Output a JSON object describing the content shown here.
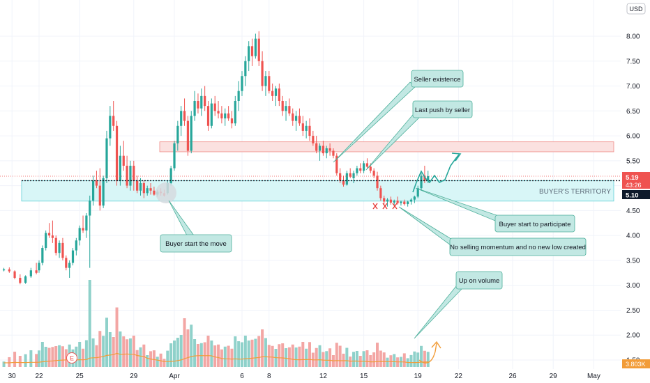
{
  "chart_data": {
    "type": "candlestick",
    "currency": "USD",
    "y_ticks": [
      "8.00",
      "7.50",
      "7.00",
      "6.50",
      "6.00",
      "5.50",
      "5.00",
      "4.50",
      "4.00",
      "3.50",
      "3.00",
      "2.50",
      "2.00",
      "1.50"
    ],
    "ylim": [
      1.27,
      8.45
    ],
    "x_ticks": [
      {
        "label": "30",
        "day": -2
      },
      {
        "label": "22",
        "day": 0
      },
      {
        "label": "25",
        "day": 3
      },
      {
        "label": "29",
        "day": 7
      },
      {
        "label": "Apr",
        "day": 10
      },
      {
        "label": "6",
        "day": 15
      },
      {
        "label": "8",
        "day": 17
      },
      {
        "label": "12",
        "day": 21
      },
      {
        "label": "15",
        "day": 24
      },
      {
        "label": "19",
        "day": 28
      },
      {
        "label": "22",
        "day": 31
      },
      {
        "label": "26",
        "day": 35
      },
      {
        "label": "29",
        "day": 38
      },
      {
        "label": "May",
        "day": 41
      }
    ],
    "candle_series": [
      [
        -2.6,
        3.3,
        3.35,
        3.28,
        3.32
      ],
      [
        -2.2,
        3.32,
        3.36,
        3.25,
        3.28
      ],
      [
        -1.8,
        3.28,
        3.3,
        3.12,
        3.15
      ],
      [
        -1.4,
        3.15,
        3.22,
        3.02,
        3.05
      ],
      [
        -1.0,
        3.05,
        3.2,
        3.03,
        3.18
      ],
      [
        -0.6,
        3.18,
        3.35,
        3.15,
        3.3
      ],
      [
        -0.2,
        3.3,
        3.45,
        3.22,
        3.25
      ],
      [
        0.0,
        3.3,
        3.5,
        3.25,
        3.45
      ],
      [
        0.25,
        3.45,
        3.8,
        3.4,
        3.75
      ],
      [
        0.5,
        3.75,
        4.1,
        3.7,
        4.05
      ],
      [
        0.75,
        4.05,
        4.25,
        3.95,
        4.0
      ],
      [
        1.0,
        4.0,
        4.3,
        3.85,
        3.95
      ],
      [
        1.25,
        3.95,
        4.0,
        3.6,
        3.65
      ],
      [
        1.5,
        3.65,
        3.9,
        3.55,
        3.85
      ],
      [
        1.75,
        3.85,
        3.95,
        3.5,
        3.55
      ],
      [
        2.0,
        3.55,
        3.6,
        3.3,
        3.35
      ],
      [
        2.25,
        3.35,
        3.5,
        3.15,
        3.45
      ],
      [
        2.5,
        3.45,
        3.75,
        3.4,
        3.7
      ],
      [
        2.75,
        3.7,
        3.95,
        3.6,
        3.9
      ],
      [
        3.0,
        3.9,
        4.2,
        3.8,
        4.15
      ],
      [
        3.25,
        4.15,
        4.4,
        4.05,
        4.1
      ],
      [
        3.5,
        4.1,
        4.45,
        3.95,
        4.4
      ],
      [
        3.75,
        4.4,
        4.8,
        3.35,
        4.7
      ],
      [
        4.0,
        4.7,
        5.2,
        4.6,
        5.1
      ],
      [
        4.25,
        5.1,
        5.3,
        4.95,
        5.0
      ],
      [
        4.5,
        5.0,
        5.35,
        4.5,
        4.6
      ],
      [
        4.75,
        4.6,
        5.2,
        4.55,
        5.15
      ],
      [
        5.0,
        5.15,
        6.1,
        5.05,
        5.95
      ],
      [
        5.25,
        5.95,
        6.6,
        5.8,
        6.4
      ],
      [
        5.5,
        6.4,
        6.7,
        6.1,
        6.2
      ],
      [
        5.75,
        6.2,
        6.3,
        5.0,
        5.1
      ],
      [
        6.0,
        5.1,
        5.8,
        5.0,
        5.6
      ],
      [
        6.25,
        5.6,
        5.9,
        5.3,
        5.4
      ],
      [
        6.5,
        5.4,
        5.6,
        4.95,
        5.0
      ],
      [
        6.75,
        5.0,
        5.5,
        4.9,
        5.4
      ],
      [
        7.0,
        5.4,
        5.5,
        4.9,
        5.1
      ],
      [
        7.25,
        5.1,
        5.2,
        4.85,
        4.9
      ],
      [
        7.5,
        4.9,
        5.15,
        4.8,
        5.05
      ],
      [
        7.75,
        5.05,
        5.1,
        4.75,
        4.85
      ],
      [
        8.0,
        4.85,
        5.0,
        4.8,
        4.95
      ],
      [
        8.25,
        4.95,
        5.05,
        4.82,
        4.9
      ],
      [
        8.5,
        4.9,
        4.98,
        4.8,
        4.82
      ],
      [
        8.75,
        4.82,
        4.92,
        4.78,
        4.88
      ],
      [
        9.0,
        4.88,
        4.95,
        4.8,
        4.85
      ],
      [
        9.25,
        4.85,
        4.92,
        4.78,
        4.8
      ],
      [
        9.5,
        4.85,
        5.1,
        4.82,
        5.05
      ],
      [
        9.75,
        5.05,
        5.4,
        5.0,
        5.35
      ],
      [
        10.0,
        5.35,
        5.9,
        5.3,
        5.85
      ],
      [
        10.25,
        5.85,
        6.3,
        5.7,
        6.2
      ],
      [
        10.5,
        6.2,
        6.6,
        6.0,
        6.5
      ],
      [
        10.75,
        6.5,
        6.75,
        6.2,
        6.3
      ],
      [
        11.0,
        6.3,
        6.4,
        5.6,
        5.7
      ],
      [
        11.25,
        5.7,
        6.5,
        5.65,
        6.4
      ],
      [
        11.5,
        6.4,
        6.9,
        6.3,
        6.7
      ],
      [
        11.75,
        6.7,
        6.85,
        6.45,
        6.55
      ],
      [
        12.0,
        6.55,
        6.95,
        6.4,
        6.8
      ],
      [
        12.25,
        6.8,
        7.0,
        6.5,
        6.6
      ],
      [
        12.5,
        6.6,
        6.7,
        6.1,
        6.2
      ],
      [
        12.75,
        6.2,
        6.75,
        6.15,
        6.65
      ],
      [
        13.0,
        6.65,
        6.8,
        6.4,
        6.5
      ],
      [
        13.25,
        6.5,
        6.7,
        6.35,
        6.45
      ],
      [
        13.5,
        6.45,
        6.6,
        6.25,
        6.35
      ],
      [
        13.75,
        6.35,
        6.55,
        6.2,
        6.45
      ],
      [
        14.0,
        6.45,
        6.6,
        6.3,
        6.35
      ],
      [
        14.25,
        6.35,
        6.5,
        6.15,
        6.25
      ],
      [
        14.5,
        6.25,
        6.8,
        6.2,
        6.7
      ],
      [
        14.75,
        6.7,
        7.1,
        6.5,
        6.9
      ],
      [
        15.0,
        6.9,
        7.3,
        6.8,
        7.2
      ],
      [
        15.25,
        7.2,
        7.6,
        7.0,
        7.5
      ],
      [
        15.5,
        7.5,
        7.9,
        7.3,
        7.8
      ],
      [
        15.75,
        7.8,
        7.95,
        7.4,
        7.6
      ],
      [
        16.0,
        7.6,
        8.05,
        7.55,
        7.95
      ],
      [
        16.25,
        7.95,
        8.1,
        7.4,
        7.5
      ],
      [
        16.5,
        7.5,
        7.7,
        6.9,
        7.0
      ],
      [
        16.75,
        7.0,
        7.3,
        6.8,
        7.2
      ],
      [
        17.0,
        7.2,
        7.3,
        6.85,
        6.9
      ],
      [
        17.25,
        6.9,
        7.05,
        6.7,
        6.8
      ],
      [
        17.5,
        6.8,
        7.0,
        6.6,
        6.95
      ],
      [
        17.75,
        6.95,
        7.05,
        6.6,
        6.7
      ],
      [
        18.0,
        6.7,
        6.8,
        6.4,
        6.5
      ],
      [
        18.25,
        6.5,
        6.7,
        6.3,
        6.6
      ],
      [
        18.5,
        6.6,
        6.75,
        6.4,
        6.45
      ],
      [
        18.75,
        6.45,
        6.55,
        6.2,
        6.3
      ],
      [
        19.0,
        6.3,
        6.5,
        6.1,
        6.4
      ],
      [
        19.25,
        6.4,
        6.55,
        6.2,
        6.25
      ],
      [
        19.5,
        6.25,
        6.4,
        6.0,
        6.1
      ],
      [
        19.75,
        6.1,
        6.3,
        5.95,
        6.2
      ],
      [
        20.0,
        6.2,
        6.35,
        5.9,
        6.0
      ],
      [
        20.25,
        6.0,
        6.1,
        5.8,
        5.85
      ],
      [
        20.5,
        5.85,
        6.0,
        5.65,
        5.7
      ],
      [
        20.75,
        5.7,
        5.85,
        5.5,
        5.8
      ],
      [
        21.0,
        5.8,
        5.9,
        5.6,
        5.65
      ],
      [
        21.25,
        5.65,
        5.8,
        5.55,
        5.75
      ],
      [
        21.5,
        5.75,
        5.85,
        5.6,
        5.7
      ],
      [
        21.75,
        5.7,
        5.75,
        5.55,
        5.6
      ],
      [
        22.0,
        5.6,
        5.65,
        5.2,
        5.25
      ],
      [
        22.25,
        5.25,
        5.35,
        5.05,
        5.1
      ],
      [
        22.5,
        5.1,
        5.2,
        4.98,
        5.02
      ],
      [
        22.75,
        5.02,
        5.3,
        5.0,
        5.25
      ],
      [
        23.0,
        5.25,
        5.35,
        5.15,
        5.18
      ],
      [
        23.25,
        5.15,
        5.3,
        5.05,
        5.25
      ],
      [
        23.5,
        5.25,
        5.4,
        5.2,
        5.35
      ],
      [
        23.75,
        5.35,
        5.45,
        5.25,
        5.3
      ],
      [
        24.0,
        5.3,
        5.5,
        5.25,
        5.45
      ],
      [
        24.25,
        5.45,
        5.55,
        5.35,
        5.38
      ],
      [
        24.5,
        5.38,
        5.45,
        5.25,
        5.3
      ],
      [
        24.75,
        5.3,
        5.35,
        5.15,
        5.2
      ],
      [
        25.0,
        5.2,
        5.28,
        4.9,
        4.95
      ],
      [
        25.25,
        4.95,
        5.0,
        4.7,
        4.75
      ],
      [
        25.5,
        4.75,
        4.8,
        4.62,
        4.68
      ],
      [
        25.75,
        4.68,
        4.75,
        4.58,
        4.72
      ],
      [
        26.0,
        4.72,
        4.78,
        4.62,
        4.66
      ],
      [
        26.25,
        4.66,
        4.72,
        4.6,
        4.7
      ],
      [
        26.5,
        4.7,
        4.78,
        4.62,
        4.65
      ],
      [
        26.75,
        4.65,
        4.7,
        4.6,
        4.68
      ],
      [
        27.0,
        4.68,
        4.72,
        4.6,
        4.63
      ],
      [
        27.25,
        4.63,
        4.7,
        4.58,
        4.68
      ],
      [
        27.5,
        4.68,
        4.75,
        4.62,
        4.72
      ],
      [
        27.75,
        4.72,
        4.8,
        4.65,
        4.78
      ],
      [
        28.0,
        4.78,
        5.0,
        4.75,
        4.95
      ],
      [
        28.25,
        4.95,
        5.25,
        4.9,
        5.2
      ],
      [
        28.5,
        5.2,
        5.4,
        5.05,
        5.1
      ],
      [
        28.75,
        5.1,
        5.3,
        5.05,
        5.19
      ]
    ],
    "volume_ticks": [
      "3.803K"
    ],
    "current_price_tag": {
      "price": "5.19",
      "countdown": "43:26"
    },
    "zone_price_tag": "5.10",
    "dotted_level": 5.1,
    "resistance_zone": {
      "low": 5.68,
      "high": 5.88
    },
    "support_zone": {
      "low": 4.69,
      "high": 5.1,
      "label": "BUYER'S TERRITORY"
    },
    "earnings_marker": "E",
    "annotations": [
      "Seller existence",
      "Last push by seller",
      "Buyer start the move",
      "Buyer start to participate",
      "No selling momentum and no new low created",
      "Up on volume"
    ]
  },
  "theme": {
    "up_color": "#26a69a",
    "down_color": "#ef5350",
    "vol_up": "#8fd1ca",
    "vol_down": "#f3a6a4",
    "grid": "#f0f3fa",
    "note_fill": "#c2e8e3",
    "note_stroke": "#4caf9a",
    "support_fill": "#d8f6f7",
    "support_stroke": "#5fd0d6",
    "resist_fill": "#fbe1e0",
    "resist_stroke": "#f08a86",
    "ma_color": "#f29c38"
  }
}
